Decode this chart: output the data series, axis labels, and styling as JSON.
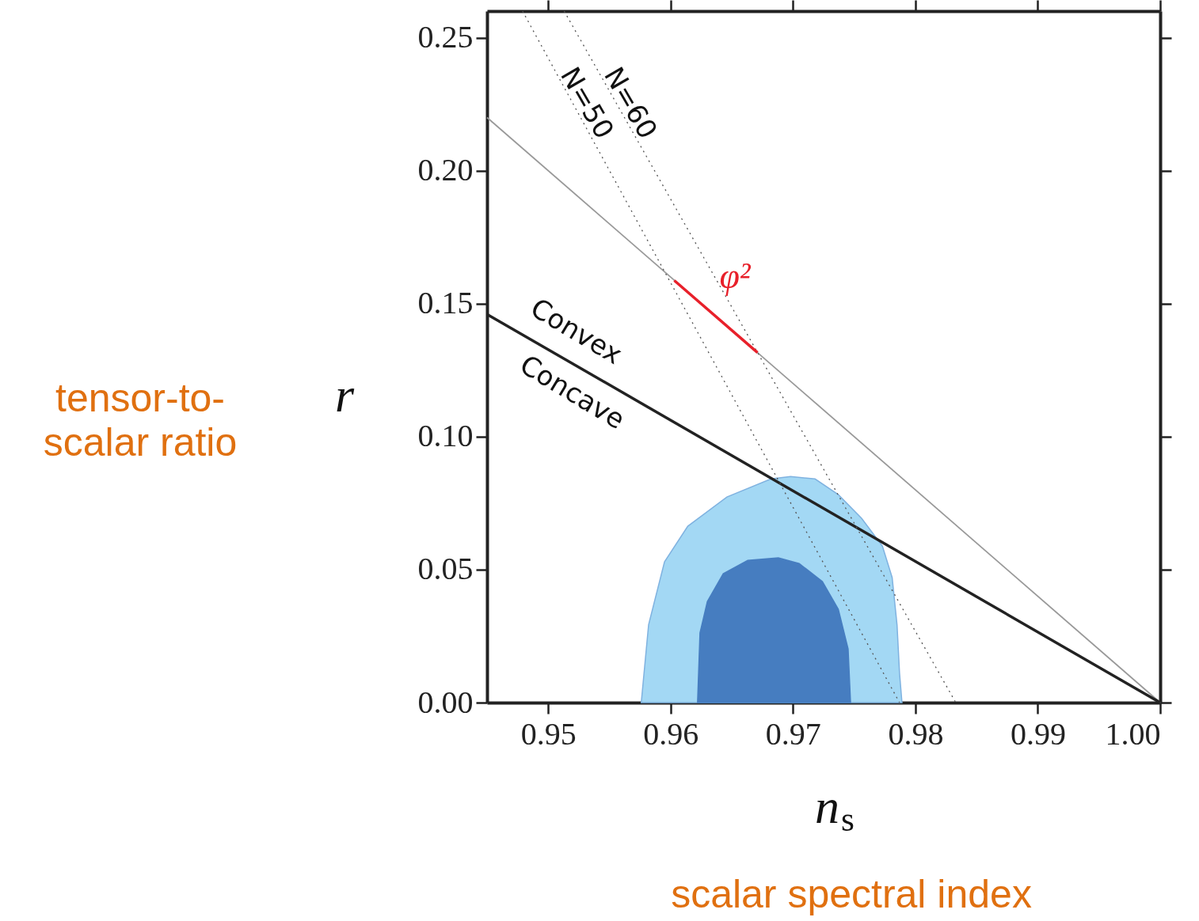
{
  "chart_data": {
    "type": "line",
    "xlabel": "n$_{s}$",
    "ylabel": "r",
    "xlim": [
      0.945,
      1.0
    ],
    "ylim": [
      0,
      0.26
    ],
    "xticks": [
      0.95,
      0.96,
      0.97,
      0.98,
      0.99,
      {
        "value": 1.0,
        "label": "1.00"
      }
    ],
    "yticks": [
      {
        "value": 0,
        "label": "0.00"
      },
      0.05,
      {
        "value": 0.1,
        "label": "0.10"
      },
      0.15,
      {
        "value": 0.2,
        "label": "0.20"
      },
      0.25
    ],
    "grid": false,
    "marker": "none",
    "series": [
      {
        "type": "area",
        "color": "#a3d8f4",
        "x": [
          0.9576,
          0.9582,
          0.9595,
          0.9614,
          0.9646,
          0.9682,
          0.9698,
          0.9718,
          0.9737,
          0.9756,
          0.9773,
          0.9781,
          0.9785,
          0.9787,
          0.9789
        ],
        "values": [
          0,
          0.0293,
          0.0529,
          0.0663,
          0.0773,
          0.0841,
          0.085,
          0.0841,
          0.0782,
          0.0693,
          0.0589,
          0.047,
          0.0291,
          0.0113,
          0
        ]
      },
      {
        "type": "area",
        "color": "#467dc0",
        "x": [
          0.9622,
          0.9624,
          0.963,
          0.9643,
          0.9663,
          0.9688,
          0.9705,
          0.9724,
          0.9737,
          0.9745,
          0.9747
        ],
        "values": [
          0,
          0.0262,
          0.038,
          0.0485,
          0.0535,
          0.0544,
          0.0523,
          0.0455,
          0.0351,
          0.0202,
          0
        ]
      },
      {
        "color": "#999999",
        "x": [
          0.945,
          1.0
        ],
        "values": [
          0.22,
          0
        ]
      },
      {
        "color": "#222222",
        "x": [
          0.945,
          1.0
        ],
        "values": [
          0.146,
          0
        ]
      },
      {
        "name": "N=50",
        "color": "#555555",
        "line_style": "dotted",
        "x": [
          0.9479,
          0.9787
        ],
        "values": [
          0.26,
          0
        ]
      },
      {
        "name": "N=60",
        "color": "#555555",
        "line_style": "dotted",
        "x": [
          0.9513,
          0.9833
        ],
        "values": [
          0.26,
          0
        ]
      },
      {
        "name": "φ²",
        "color": "#e8202a",
        "x": [
          0.9603,
          0.9671
        ],
        "values": [
          0.1587,
          0.1316
        ]
      }
    ],
    "annotations": [
      "Convex",
      "Concave",
      "tensor-to-scalar ratio",
      "scalar spectral index"
    ]
  }
}
